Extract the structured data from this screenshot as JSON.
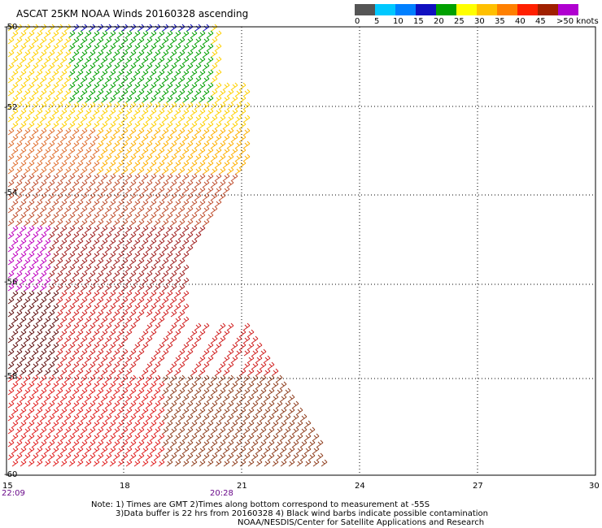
{
  "title": "ASCAT 25KM NOAA Winds 20160328 ascending",
  "legend": {
    "colors": [
      "#555555",
      "#8a8a8a",
      "#00c8ff",
      "#0080ff",
      "#1010c0",
      "#00a000",
      "#80e000",
      "#ffff00",
      "#ffc000",
      "#ff8000",
      "#ff3000",
      "#d00000",
      "#a00030",
      "#802000",
      "#ff40ff",
      "#b000d0",
      "#500080"
    ],
    "labels": [
      "0",
      "5",
      "10",
      "15",
      "20",
      "25",
      "30",
      "35",
      "40",
      "45",
      ">50 knots"
    ]
  },
  "axes": {
    "lat_labels": [
      "-50",
      "-52",
      "-54",
      "-56",
      "-58",
      "-60"
    ],
    "lon_labels": [
      "15",
      "18",
      "21",
      "24",
      "27",
      "30"
    ],
    "time_labels": [
      "22:09",
      "20:28"
    ]
  },
  "note_lines": [
    "Note: 1) Times are GMT 2)Times along bottom correspond to measurement at -55S",
    "3)Data buffer is 22 hrs from 20160328 4) Black wind barbs indicate possible contamination"
  ],
  "credit": "NOAA/NESDIS/Center for Satellite Applications and Research"
}
